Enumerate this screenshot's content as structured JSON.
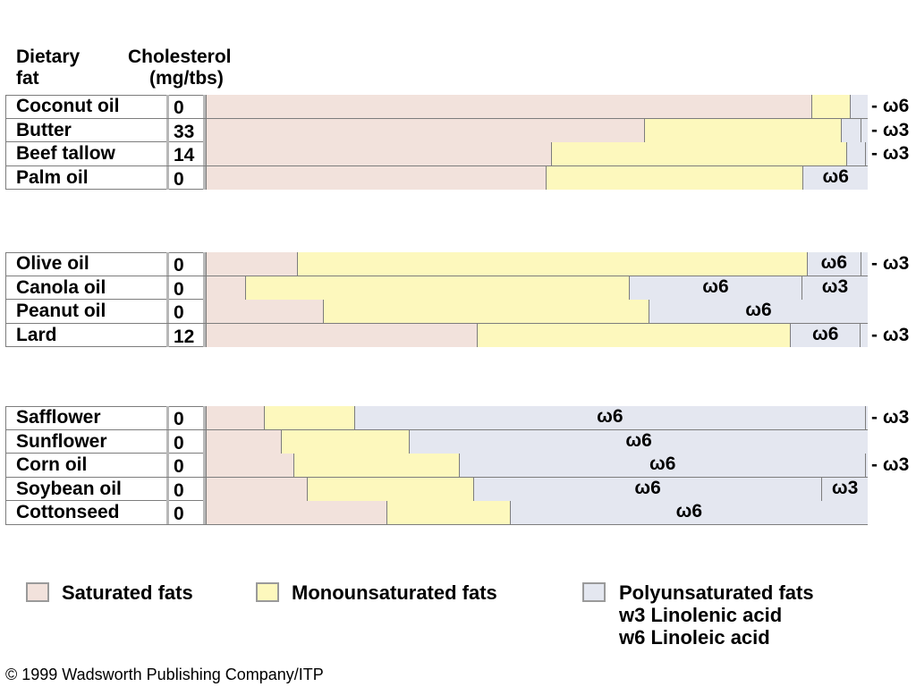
{
  "chart_data": {
    "type": "bar",
    "stacked": true,
    "headers": {
      "fat_line1": "Dietary",
      "fat_line2": "fat",
      "chol_line1": "Cholesterol",
      "chol_line2": "(mg/tbs)"
    },
    "omega6_label": "ω6",
    "omega3_label": "ω3",
    "groups": [
      {
        "rows": [
          {
            "name": "Coconut oil",
            "cholesterol": "0",
            "saturated": 91.5,
            "mono": 5.8,
            "poly_w6": 2.7,
            "poly_w3": 0,
            "w6_outside": true,
            "w3_outside": false
          },
          {
            "name": "Butter",
            "cholesterol": "33",
            "saturated": 66.2,
            "mono": 29.7,
            "poly_w6": 3.0,
            "poly_w3": 1.1,
            "w6_outside": false,
            "w3_outside": true
          },
          {
            "name": "Beef tallow",
            "cholesterol": "14",
            "saturated": 52.2,
            "mono": 44.5,
            "poly_w6": 2.9,
            "poly_w3": 0.4,
            "w6_outside": false,
            "w3_outside": true
          },
          {
            "name": "Palm oil",
            "cholesterol": "0",
            "saturated": 51.3,
            "mono": 38.9,
            "poly_w6": 9.8,
            "poly_w3": 0,
            "w6_outside": false,
            "w3_outside": false
          }
        ]
      },
      {
        "rows": [
          {
            "name": "Olive oil",
            "cholesterol": "0",
            "saturated": 13.8,
            "mono": 77.0,
            "poly_w6": 8.1,
            "poly_w3": 1.1,
            "w6_outside": false,
            "w3_outside": true
          },
          {
            "name": "Canola oil",
            "cholesterol": "0",
            "saturated": 5.9,
            "mono": 58.0,
            "poly_w6": 26.1,
            "poly_w3": 10.0,
            "w6_outside": false,
            "w3_outside": false
          },
          {
            "name": "Peanut oil",
            "cholesterol": "0",
            "saturated": 17.7,
            "mono": 49.2,
            "poly_w6": 33.1,
            "poly_w3": 0,
            "w6_outside": false,
            "w3_outside": false
          },
          {
            "name": "Lard",
            "cholesterol": "12",
            "saturated": 41.0,
            "mono": 47.3,
            "poly_w6": 10.5,
            "poly_w3": 1.2,
            "w6_outside": false,
            "w3_outside": true
          }
        ]
      },
      {
        "rows": [
          {
            "name": "Safflower",
            "cholesterol": "0",
            "saturated": 8.8,
            "mono": 13.6,
            "poly_w6": 77.2,
            "poly_w3": 0.4,
            "w6_outside": false,
            "w3_outside": true
          },
          {
            "name": "Sunflower",
            "cholesterol": "0",
            "saturated": 11.4,
            "mono": 19.3,
            "poly_w6": 69.3,
            "poly_w3": 0,
            "w6_outside": false,
            "w3_outside": false
          },
          {
            "name": "Corn oil",
            "cholesterol": "0",
            "saturated": 13.2,
            "mono": 25.1,
            "poly_w6": 61.3,
            "poly_w3": 0.4,
            "w6_outside": false,
            "w3_outside": true
          },
          {
            "name": "Soybean oil",
            "cholesterol": "0",
            "saturated": 15.3,
            "mono": 25.1,
            "poly_w6": 52.6,
            "poly_w3": 7.0,
            "w6_outside": false,
            "w3_outside": false
          },
          {
            "name": "Cottonseed",
            "cholesterol": "0",
            "saturated": 27.3,
            "mono": 18.6,
            "poly_w6": 54.1,
            "poly_w3": 0,
            "w6_outside": false,
            "w3_outside": false
          }
        ]
      }
    ],
    "legend": {
      "saturated": "Saturated fats",
      "mono": "Monounsaturated fats",
      "poly": "Polyunsaturated fats",
      "w3_note": "w3 Linolenic acid",
      "w6_note": "w6 Linoleic acid"
    },
    "colors": {
      "saturated": "#f2e2dc",
      "mono": "#fdf8bd",
      "poly": "#e4e7f0",
      "border": "#7d7d7d"
    }
  },
  "copyright": "© 1999 Wadsworth Publishing Company/ITP"
}
